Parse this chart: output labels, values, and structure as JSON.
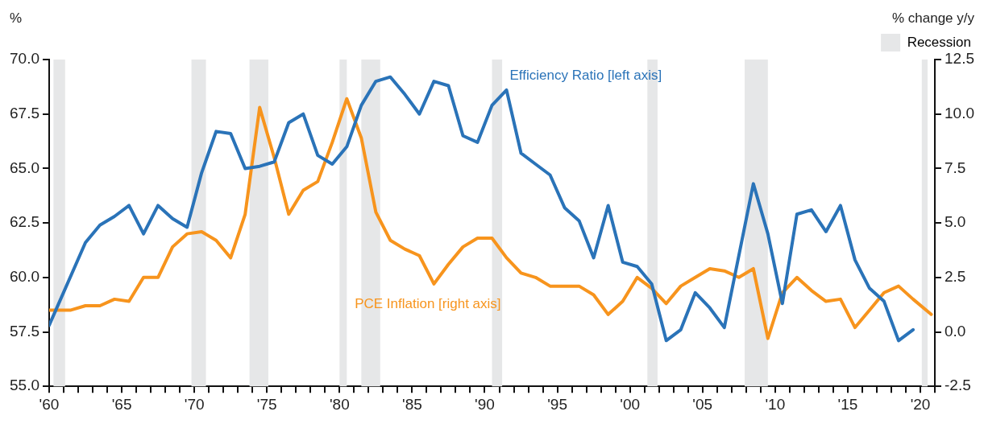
{
  "chart_data": {
    "type": "line",
    "ylabel": "%",
    "y2label": "% change y/y",
    "xlim": [
      1960,
      2021
    ],
    "xticks": [
      {
        "value": 1960,
        "label": "'60"
      },
      {
        "value": 1961,
        "label": null
      },
      {
        "value": 1962,
        "label": null
      },
      {
        "value": 1963,
        "label": null
      },
      {
        "value": 1964,
        "label": null
      },
      {
        "value": 1965,
        "label": "'65"
      },
      {
        "value": 1966,
        "label": null
      },
      {
        "value": 1967,
        "label": null
      },
      {
        "value": 1968,
        "label": null
      },
      {
        "value": 1969,
        "label": null
      },
      {
        "value": 1970,
        "label": "'70"
      },
      {
        "value": 1971,
        "label": null
      },
      {
        "value": 1972,
        "label": null
      },
      {
        "value": 1973,
        "label": null
      },
      {
        "value": 1974,
        "label": null
      },
      {
        "value": 1975,
        "label": "'75"
      },
      {
        "value": 1976,
        "label": null
      },
      {
        "value": 1977,
        "label": null
      },
      {
        "value": 1978,
        "label": null
      },
      {
        "value": 1979,
        "label": null
      },
      {
        "value": 1980,
        "label": "'80"
      },
      {
        "value": 1981,
        "label": null
      },
      {
        "value": 1982,
        "label": null
      },
      {
        "value": 1983,
        "label": null
      },
      {
        "value": 1984,
        "label": null
      },
      {
        "value": 1985,
        "label": "'85"
      },
      {
        "value": 1986,
        "label": null
      },
      {
        "value": 1987,
        "label": null
      },
      {
        "value": 1988,
        "label": null
      },
      {
        "value": 1989,
        "label": null
      },
      {
        "value": 1990,
        "label": "'90"
      },
      {
        "value": 1991,
        "label": null
      },
      {
        "value": 1992,
        "label": null
      },
      {
        "value": 1993,
        "label": null
      },
      {
        "value": 1994,
        "label": null
      },
      {
        "value": 1995,
        "label": "'95"
      },
      {
        "value": 1996,
        "label": null
      },
      {
        "value": 1997,
        "label": null
      },
      {
        "value": 1998,
        "label": null
      },
      {
        "value": 1999,
        "label": null
      },
      {
        "value": 2000,
        "label": "'00"
      },
      {
        "value": 2001,
        "label": null
      },
      {
        "value": 2002,
        "label": null
      },
      {
        "value": 2003,
        "label": null
      },
      {
        "value": 2004,
        "label": null
      },
      {
        "value": 2005,
        "label": "'05"
      },
      {
        "value": 2006,
        "label": null
      },
      {
        "value": 2007,
        "label": null
      },
      {
        "value": 2008,
        "label": null
      },
      {
        "value": 2009,
        "label": null
      },
      {
        "value": 2010,
        "label": "'10"
      },
      {
        "value": 2011,
        "label": null
      },
      {
        "value": 2012,
        "label": null
      },
      {
        "value": 2013,
        "label": null
      },
      {
        "value": 2014,
        "label": null
      },
      {
        "value": 2015,
        "label": "'15"
      },
      {
        "value": 2016,
        "label": null
      },
      {
        "value": 2017,
        "label": null
      },
      {
        "value": 2018,
        "label": null
      },
      {
        "value": 2019,
        "label": null
      },
      {
        "value": 2020,
        "label": "'20"
      },
      {
        "value": 2021,
        "label": null
      }
    ],
    "ylim": [
      55,
      70
    ],
    "yticks": [
      {
        "value": 55,
        "label": "55.0"
      },
      {
        "value": 57.5,
        "label": "57.5"
      },
      {
        "value": 60,
        "label": "60.0"
      },
      {
        "value": 62.5,
        "label": "62.5"
      },
      {
        "value": 65,
        "label": "65.0"
      },
      {
        "value": 67.5,
        "label": "67.5"
      },
      {
        "value": 70,
        "label": "70.0"
      }
    ],
    "y2lim": [
      -2.5,
      12.5
    ],
    "y2ticks": [
      {
        "value": -2.5,
        "label": "-2.5"
      },
      {
        "value": 0,
        "label": "0.0"
      },
      {
        "value": 2.5,
        "label": "2.5"
      },
      {
        "value": 5,
        "label": "5.0"
      },
      {
        "value": 7.5,
        "label": "7.5"
      },
      {
        "value": 10,
        "label": "10.0"
      },
      {
        "value": 12.5,
        "label": "12.5"
      }
    ],
    "grid": false,
    "legend": "top right",
    "marker": "none",
    "line_style": "solid",
    "bands": [
      {
        "axis": "x",
        "from": 1960.3,
        "to": 1961.1,
        "label": "Recession",
        "color": "#e6e7e8"
      },
      {
        "axis": "x",
        "from": 1969.8,
        "to": 1970.8,
        "color": "#e6e7e8"
      },
      {
        "axis": "x",
        "from": 1973.8,
        "to": 1975.1,
        "color": "#e6e7e8"
      },
      {
        "axis": "x",
        "from": 1980,
        "to": 1980.5,
        "color": "#e6e7e8"
      },
      {
        "axis": "x",
        "from": 1981.5,
        "to": 1982.8,
        "color": "#e6e7e8"
      },
      {
        "axis": "x",
        "from": 1990.5,
        "to": 1991.2,
        "color": "#e6e7e8"
      },
      {
        "axis": "x",
        "from": 2001.2,
        "to": 2001.9,
        "color": "#e6e7e8"
      },
      {
        "axis": "x",
        "from": 2007.9,
        "to": 2009.5,
        "color": "#e6e7e8"
      },
      {
        "axis": "x",
        "from": 2020.1,
        "to": 2020.5,
        "color": "#e6e7e8"
      }
    ],
    "series": [
      {
        "name": "Efficiency Ratio [left axis]",
        "color": "#2a73b8",
        "x": [
          1960,
          1962.5,
          1963.5,
          1964.5,
          1965.5,
          1966.5,
          1967.5,
          1968.5,
          1969.5,
          1970.5,
          1971.5,
          1972.5,
          1973.5,
          1974.5,
          1975.5,
          1976.5,
          1977.5,
          1978.5,
          1979.5,
          1980.5,
          1981.5,
          1982.5,
          1983.5,
          1984.5,
          1985.5,
          1986.5,
          1987.5,
          1988.5,
          1989.5,
          1990.5,
          1991.5,
          1992.5,
          1993.5,
          1994.5,
          1995.5,
          1996.5,
          1997.5,
          1998.5,
          1999.5,
          2000.5,
          2001.5,
          2002.5,
          2003.5,
          2004.5,
          2005.5,
          2006.5,
          2008.5,
          2009.5,
          2010.5,
          2011.5,
          2012.5,
          2013.5,
          2014.5,
          2015.5,
          2016.5,
          2017.5,
          2018.5,
          2019.5
        ],
        "values": [
          57.8,
          61.6,
          62.4,
          62.8,
          63.3,
          62.0,
          63.3,
          62.7,
          62.3,
          64.8,
          66.7,
          66.6,
          65.0,
          65.1,
          65.3,
          67.1,
          67.5,
          65.6,
          65.2,
          66.0,
          67.9,
          69.0,
          69.2,
          68.4,
          67.5,
          69.0,
          68.8,
          66.5,
          66.2,
          67.9,
          68.6,
          65.7,
          65.2,
          64.7,
          63.2,
          62.6,
          60.9,
          63.3,
          60.7,
          60.5,
          59.7,
          57.1,
          57.6,
          59.3,
          58.6,
          57.7,
          64.3,
          62.0,
          58.8,
          62.9,
          63.1,
          62.1,
          63.3,
          60.8,
          59.5,
          58.9,
          57.1,
          57.6
        ]
      },
      {
        "name": "PCE Inflation [right axis]",
        "color": "#f7941d",
        "axis": "y2",
        "x": [
          1960,
          1961.5,
          1962.5,
          1963.5,
          1964.5,
          1965.5,
          1966.5,
          1967.5,
          1968.5,
          1969.5,
          1970.5,
          1971.5,
          1972.5,
          1973.5,
          1974.5,
          1975.5,
          1976.5,
          1977.5,
          1978.5,
          1979.5,
          1980.5,
          1981.5,
          1982.5,
          1983.5,
          1984.5,
          1985.5,
          1986.5,
          1987.5,
          1988.5,
          1989.5,
          1990.5,
          1991.5,
          1992.5,
          1993.5,
          1994.5,
          1995.5,
          1996.5,
          1997.5,
          1998.5,
          1999.5,
          2000.5,
          2001.5,
          2002.5,
          2003.5,
          2004.5,
          2005.5,
          2006.5,
          2007.5,
          2008.5,
          2009.5,
          2010.5,
          2011.5,
          2012.5,
          2013.5,
          2014.5,
          2015.5,
          2016.5,
          2017.5,
          2018.5,
          2019.5,
          2020.75
        ],
        "values": [
          1.0,
          1.0,
          1.2,
          1.2,
          1.5,
          1.4,
          2.5,
          2.5,
          3.9,
          4.5,
          4.6,
          4.2,
          3.4,
          5.4,
          10.3,
          8.0,
          5.4,
          6.5,
          6.9,
          8.7,
          10.7,
          8.9,
          5.5,
          4.2,
          3.8,
          3.5,
          2.2,
          3.1,
          3.9,
          4.3,
          4.3,
          3.4,
          2.7,
          2.5,
          2.1,
          2.1,
          2.1,
          1.7,
          0.8,
          1.4,
          2.5,
          2.0,
          1.3,
          2.1,
          2.5,
          2.9,
          2.8,
          2.5,
          2.9,
          -0.3,
          1.8,
          2.5,
          1.9,
          1.4,
          1.5,
          0.2,
          1.0,
          1.8,
          2.1,
          1.5,
          0.8
        ]
      }
    ]
  }
}
